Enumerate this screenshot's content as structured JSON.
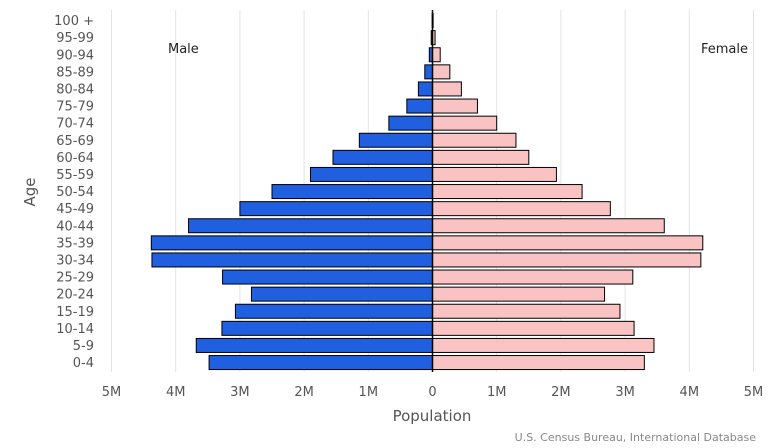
{
  "chart_data": {
    "type": "bar",
    "orientation": "horizontal",
    "subtype": "population-pyramid",
    "categories": [
      "100 +",
      "95-99",
      "90-94",
      "85-89",
      "80-84",
      "75-79",
      "70-74",
      "65-69",
      "60-64",
      "55-59",
      "50-54",
      "45-49",
      "40-44",
      "35-39",
      "30-34",
      "25-29",
      "20-24",
      "15-19",
      "10-14",
      "5-9",
      "0-4"
    ],
    "series": [
      {
        "name": "Male",
        "color": "#1F5FE0",
        "values": [
          0.005,
          0.02,
          0.05,
          0.12,
          0.22,
          0.4,
          0.68,
          1.14,
          1.55,
          1.9,
          2.5,
          3.0,
          3.8,
          4.38,
          4.37,
          3.27,
          2.82,
          3.07,
          3.28,
          3.68,
          3.48
        ]
      },
      {
        "name": "Female",
        "color": "#F9C3C3",
        "values": [
          0.01,
          0.04,
          0.12,
          0.27,
          0.45,
          0.7,
          1.0,
          1.3,
          1.5,
          1.93,
          2.33,
          2.77,
          3.61,
          4.21,
          4.18,
          3.12,
          2.68,
          2.92,
          3.14,
          3.45,
          3.3
        ]
      }
    ],
    "x_ticks": [
      "5M",
      "4M",
      "3M",
      "2M",
      "1M",
      "0",
      "1M",
      "2M",
      "3M",
      "4M",
      "5M"
    ],
    "xlim": [
      -5,
      5
    ],
    "units": "millions",
    "xlabel": "Population",
    "ylabel": "Age",
    "legend": {
      "left": "Male",
      "right": "Female"
    },
    "grid": true,
    "source": "U.S. Census Bureau, International Database"
  }
}
